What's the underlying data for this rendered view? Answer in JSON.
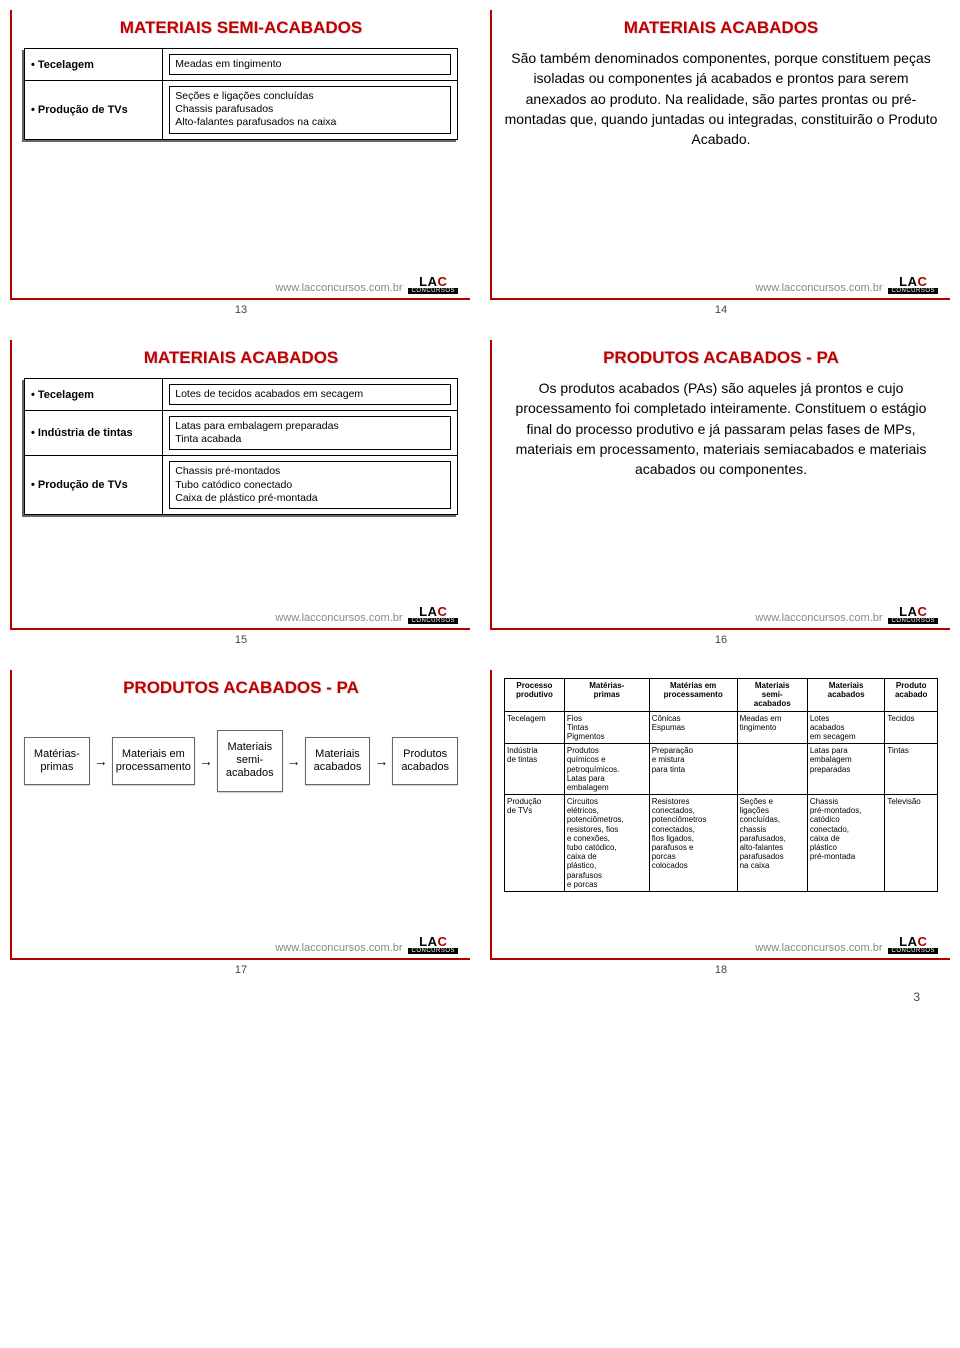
{
  "footer_url": "www.lacconcursos.com.br",
  "page_number": "3",
  "slides": {
    "s13": {
      "num": "13",
      "title": "MATERIAIS SEMI-ACABADOS",
      "rows": [
        {
          "left": "• Tecelagem",
          "box": "Meadas em tingimento"
        },
        {
          "left": "• Produção de TVs",
          "box": "Seções e ligações concluídas\nChassis parafusados\nAlto-falantes parafusados na caixa"
        }
      ]
    },
    "s14": {
      "num": "14",
      "title": "MATERIAIS ACABADOS",
      "body": "São também denominados componentes, porque constituem peças isoladas ou componentes já acabados e prontos para serem anexados ao produto. Na realidade, são partes prontas ou pré-montadas que, quando juntadas ou integradas, constituirão o Produto Acabado."
    },
    "s15": {
      "num": "15",
      "title": "MATERIAIS ACABADOS",
      "rows": [
        {
          "left": "• Tecelagem",
          "box": "Lotes de tecidos acabados em secagem"
        },
        {
          "left": "• Indústria de tintas",
          "box": "Latas para embalagem preparadas\nTinta acabada"
        },
        {
          "left": "• Produção de TVs",
          "box": "Chassis pré-montados\nTubo catódico conectado\nCaixa de plástico pré-montada"
        }
      ]
    },
    "s16": {
      "num": "16",
      "title": "PRODUTOS ACABADOS - PA",
      "body": "Os produtos acabados (PAs) são aqueles já prontos e cujo processamento foi completado inteiramente. Constituem o estágio final do processo produtivo e já passaram pelas fases de MPs, materiais em processamento, materiais semiacabados e materiais acabados ou componentes."
    },
    "s17": {
      "num": "17",
      "title": "PRODUTOS ACABADOS - PA",
      "flow": [
        "Matérias-\nprimas",
        "Materiais em\nprocessamento",
        "Materiais\nsemi-acabados",
        "Materiais\nacabados",
        "Produtos\nacabados"
      ]
    },
    "s18": {
      "num": "18",
      "headers": [
        "Processo\nprodutivo",
        "Matérias-\nprimas",
        "Matérias em\nprocessamento",
        "Materiais\nsemi-\nacabados",
        "Materiais\nacabados",
        "Produto\nacabado"
      ],
      "rows": [
        [
          "Tecelagem",
          "Fios\nTintas\nPigmentos",
          "Cônicas\nEspumas",
          "Meadas em\ntingimento",
          "Lotes\nacabados\nem secagem",
          "Tecidos"
        ],
        [
          "Indústria\nde tintas",
          "Produtos\nquímicos e\npetroquímicos.\nLatas para\nembalagem",
          "Preparação\ne mistura\npara tinta",
          "",
          "Latas para\nembalagem\npreparadas",
          "Tintas"
        ],
        [
          "Produção\nde TVs",
          "Circuitos\nelétricos,\npotenciômetros,\nresistores, fios\ne conexões,\ntubo catódico,\ncaixa de\nplástico,\nparafusos\ne porcas",
          "Resistores\nconectados,\npotenciômetros\nconectados,\nfios ligados,\nparafusos e\nporcas\ncolocados",
          "Seções e\nligações\nconcluídas,\nchassis\nparafusados,\nalto-falantes\nparafusados\nna caixa",
          "Chassis\npré-montados,\ncatódico\nconectado,\ncaixa de\nplástico\npré-montada",
          "Televisão"
        ]
      ]
    }
  }
}
